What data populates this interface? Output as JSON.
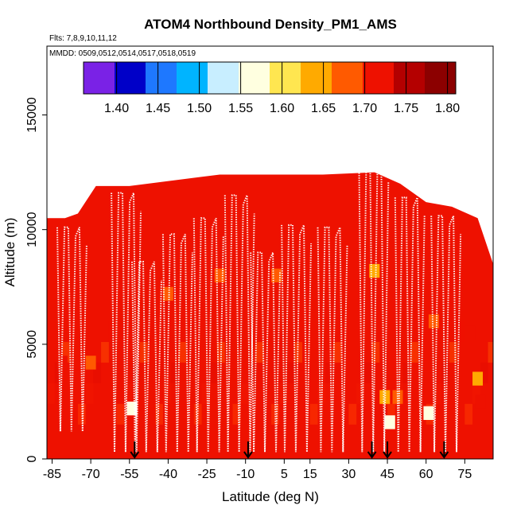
{
  "chart_data": {
    "type": "heatmap",
    "title": "ATOM4 Northbound Density_PM1_AMS",
    "subtitle_flights": "Flts: 7,8,9,10,11,12",
    "subtitle_dates": "MMDD: 0509,0512,0514,0517,0518,0519",
    "xlabel": "Latitude (deg N)",
    "ylabel": "Altitude (m)",
    "xlim": [
      -87,
      86
    ],
    "ylim": [
      0,
      18000
    ],
    "x_ticks": [
      -85,
      -70,
      -55,
      -40,
      -25,
      -10,
      5,
      15,
      30,
      45,
      60,
      75
    ],
    "x_tick_labels": [
      "-85",
      "-70",
      "-55",
      "-40",
      "-25",
      "-10",
      "5",
      "15",
      "30",
      "45",
      "60",
      "75"
    ],
    "y_ticks": [
      0,
      5000,
      10000,
      15000
    ],
    "y_tick_labels": [
      "0",
      "5000",
      "10000",
      "15000"
    ],
    "colorbar": {
      "range": [
        1.36,
        1.81
      ],
      "ticks": [
        1.4,
        1.45,
        1.5,
        1.55,
        1.6,
        1.65,
        1.7,
        1.75,
        1.8
      ],
      "tick_labels": [
        "1.40",
        "1.45",
        "1.50",
        "1.55",
        "1.60",
        "1.65",
        "1.70",
        "1.75",
        "1.80"
      ],
      "colors": [
        "#7a22e6",
        "#0000c8",
        "#1e78ff",
        "#00b4ff",
        "#c8eeff",
        "#ffffe0",
        "#ffe650",
        "#ffaa00",
        "#ff5a00",
        "#ee1100",
        "#b40000",
        "#8c0000"
      ]
    },
    "background_color": "#ee1100",
    "coverage": [
      [
        -87,
        10500
      ],
      [
        -80,
        10500
      ],
      [
        -75,
        10700
      ],
      [
        -68,
        11900
      ],
      [
        -55,
        11900
      ],
      [
        -20,
        12400
      ],
      [
        20,
        12400
      ],
      [
        40,
        12500
      ],
      [
        50,
        12000
      ],
      [
        60,
        11200
      ],
      [
        70,
        11000
      ],
      [
        80,
        10500
      ],
      [
        86,
        8500
      ]
    ],
    "highlights": [
      {
        "lat": -81,
        "alt": 4200,
        "value": 1.72
      },
      {
        "lat": -75,
        "alt": 4200,
        "value": 1.7
      },
      {
        "lat": -70,
        "alt": 4200,
        "value": 1.68
      },
      {
        "lat": -54,
        "alt": 2200,
        "value": 1.56
      },
      {
        "lat": -50,
        "alt": 2400,
        "value": 1.7
      },
      {
        "lat": -48,
        "alt": 7800,
        "value": 1.7
      },
      {
        "lat": -40,
        "alt": 7200,
        "value": 1.68
      },
      {
        "lat": -36,
        "alt": 7200,
        "value": 1.72
      },
      {
        "lat": -20,
        "alt": 8000,
        "value": 1.68
      },
      {
        "lat": 2,
        "alt": 8000,
        "value": 1.69
      },
      {
        "lat": 40,
        "alt": 8200,
        "value": 1.66
      },
      {
        "lat": 44,
        "alt": 2700,
        "value": 1.66
      },
      {
        "lat": 49,
        "alt": 2700,
        "value": 1.67
      },
      {
        "lat": 46,
        "alt": 1600,
        "value": 1.55
      },
      {
        "lat": 61,
        "alt": 2000,
        "value": 1.57
      },
      {
        "lat": 63,
        "alt": 6000,
        "value": 1.69
      },
      {
        "lat": 77,
        "alt": 5500,
        "value": 1.7
      },
      {
        "lat": 80,
        "alt": 3500,
        "value": 1.66
      },
      {
        "lat": 81,
        "alt": 2500,
        "value": 1.7
      }
    ],
    "flight_tracks": [
      {
        "start_lat": -83,
        "dir": 1,
        "hi": 10100,
        "lo": 1200
      },
      {
        "start_lat": -62,
        "dir": 1,
        "hi": 11600,
        "lo": 300
      },
      {
        "start_lat": -54,
        "dir": 1,
        "hi": 8600,
        "lo": 300
      },
      {
        "start_lat": -42,
        "dir": 1,
        "hi": 9800,
        "lo": 300
      },
      {
        "start_lat": -30,
        "dir": 1,
        "hi": 10500,
        "lo": 300
      },
      {
        "start_lat": -18,
        "dir": 1,
        "hi": 11500,
        "lo": 300
      },
      {
        "start_lat": -8,
        "dir": 1,
        "hi": 9000,
        "lo": 300
      },
      {
        "start_lat": 4,
        "dir": 1,
        "hi": 10200,
        "lo": 300
      },
      {
        "start_lat": 18,
        "dir": 1,
        "hi": 10100,
        "lo": 300
      },
      {
        "start_lat": 34,
        "dir": 1,
        "hi": 12900,
        "lo": 300
      },
      {
        "start_lat": 48,
        "dir": 1,
        "hi": 11400,
        "lo": 300
      },
      {
        "start_lat": 62,
        "dir": 1,
        "hi": 10600,
        "lo": 300
      }
    ],
    "markers": [
      {
        "lat": -53,
        "alt": 0
      },
      {
        "lat": -9,
        "alt": 0
      },
      {
        "lat": 39,
        "alt": 0
      },
      {
        "lat": 45,
        "alt": 0
      },
      {
        "lat": 67,
        "alt": 0
      }
    ]
  }
}
